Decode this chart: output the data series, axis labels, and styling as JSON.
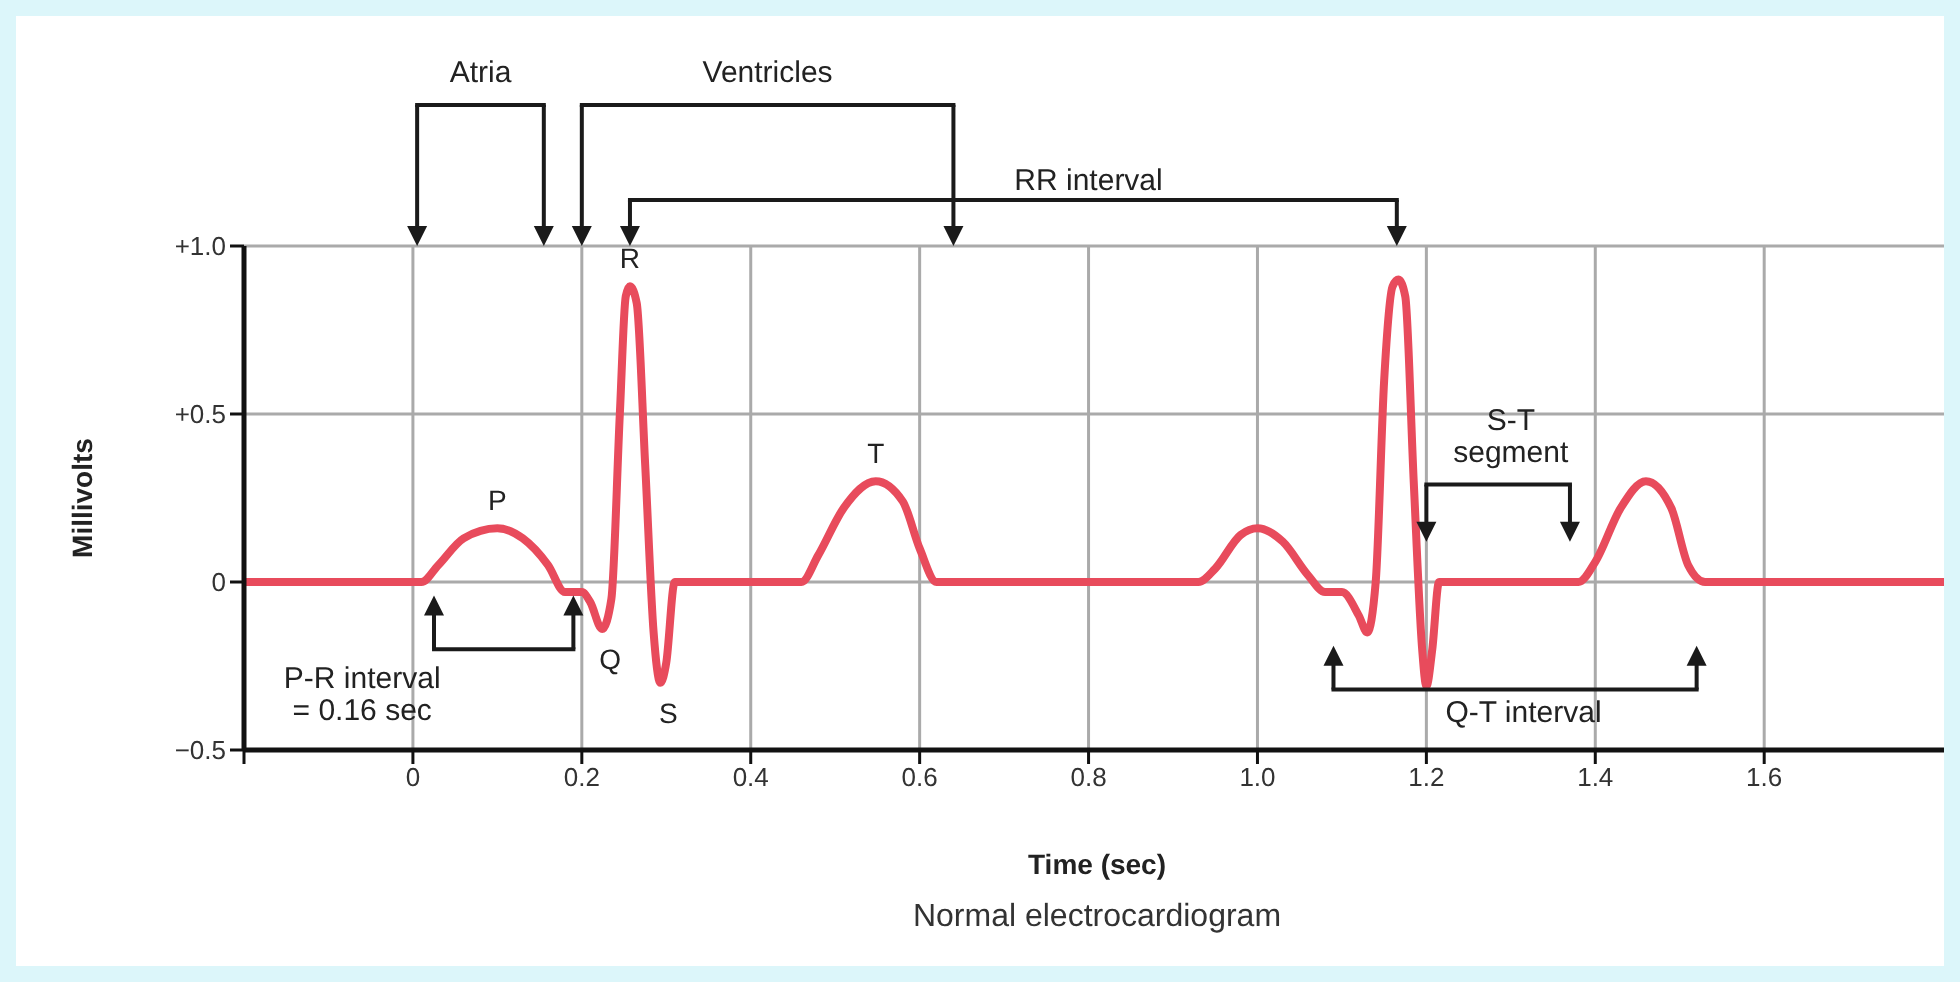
{
  "chart_data": {
    "type": "line",
    "xlabel": "Time (sec)",
    "ylabel": "Millivolts",
    "xlim": [
      -0.2,
      1.82
    ],
    "xticks": [
      {
        "value": -0.2,
        "label": null
      },
      0,
      0.2,
      0.4,
      0.6,
      0.8,
      {
        "value": 1,
        "label": "1.0"
      },
      1.2,
      1.4,
      1.6
    ],
    "ylim": [
      -0.5,
      1.0
    ],
    "yticks": [
      {
        "value": -0.5,
        "label": "−0.5"
      },
      0,
      {
        "value": 0.5,
        "label": "+0.5"
      },
      {
        "value": 1,
        "label": "+1.0"
      }
    ],
    "grid": true,
    "marker": "none",
    "line_style": "solid",
    "series": [
      {
        "color": "#e84b5c",
        "x": [
          -0.2,
          0.01,
          0.03,
          0.06,
          0.1,
          0.13,
          0.16,
          0.18,
          0.2,
          0.21,
          0.224,
          0.235,
          0.245,
          0.252,
          0.257,
          0.265,
          0.275,
          0.285,
          0.293,
          0.3,
          0.31,
          0.46,
          0.48,
          0.51,
          0.548,
          0.58,
          0.6,
          0.62,
          0.93,
          0.95,
          0.98,
          1.0,
          1.03,
          1.06,
          1.08,
          1.1,
          1.12,
          1.13,
          1.14,
          1.15,
          1.16,
          1.167,
          1.175,
          1.185,
          1.195,
          1.2,
          1.207,
          1.215,
          1.38,
          1.4,
          1.43,
          1.46,
          1.49,
          1.51,
          1.53,
          1.82
        ],
        "values": [
          0,
          0,
          0.05,
          0.13,
          0.16,
          0.13,
          0.05,
          -0.03,
          -0.03,
          -0.06,
          -0.14,
          -0.05,
          0.5,
          0.85,
          0.88,
          0.83,
          0.35,
          -0.15,
          -0.3,
          -0.24,
          0,
          0,
          0.08,
          0.22,
          0.3,
          0.24,
          0.1,
          0,
          0,
          0.04,
          0.14,
          0.16,
          0.12,
          0.02,
          -0.03,
          -0.03,
          -0.1,
          -0.15,
          0,
          0.6,
          0.88,
          0.9,
          0.85,
          0.3,
          -0.2,
          -0.31,
          -0.2,
          0,
          0,
          0.06,
          0.22,
          0.3,
          0.22,
          0.05,
          0,
          0
        ]
      }
    ],
    "annotations": [
      "Atria",
      "Ventricles",
      "RR interval",
      "P-R interval = 0.16 sec",
      "S-T segment",
      "Q-T interval",
      {
        "text": "P",
        "x": 0.1,
        "y": 0.16
      },
      {
        "text": "Q",
        "x": 0.224,
        "y": -0.14
      },
      {
        "text": "R",
        "x": 0.257,
        "y": 0.88
      },
      {
        "text": "S",
        "x": 0.293,
        "y": -0.3
      },
      {
        "text": "T",
        "x": 0.548,
        "y": 0.3
      },
      "Normal electrocardiogram"
    ]
  }
}
